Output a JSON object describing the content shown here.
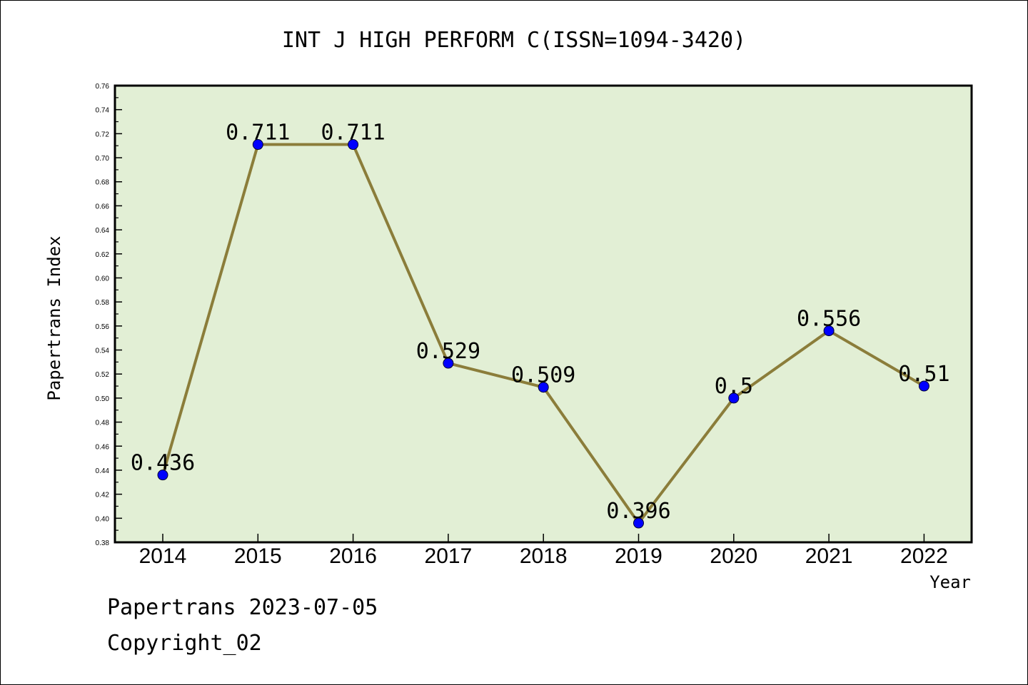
{
  "chart_data": {
    "type": "line",
    "title": "INT J HIGH PERFORM C(ISSN=1094-3420)",
    "xlabel": "Year",
    "ylabel": "Papertrans Index",
    "categories": [
      "2014",
      "2015",
      "2016",
      "2017",
      "2018",
      "2019",
      "2020",
      "2021",
      "2022"
    ],
    "series": [
      {
        "values": [
          0.436,
          0.711,
          0.711,
          0.529,
          0.509,
          0.396,
          0.5,
          0.556,
          0.51
        ],
        "labels": [
          "0.436",
          "0.711",
          "0.711",
          "0.529",
          "0.509",
          "0.396",
          "0.5",
          "0.556",
          "0.51"
        ]
      }
    ],
    "ylim": [
      0.38,
      0.76
    ],
    "yticks": [
      "0.38",
      "0.40",
      "0.42",
      "0.44",
      "0.46",
      "0.48",
      "0.50",
      "0.52",
      "0.54",
      "0.56",
      "0.58",
      "0.60",
      "0.62",
      "0.64",
      "0.66",
      "0.68",
      "0.70",
      "0.72",
      "0.74",
      "0.76"
    ],
    "grid": false,
    "legend": "none",
    "colors": {
      "plot_background": "#e2efd5",
      "line": "#8b7d3a",
      "marker": "#0000ff",
      "axis": "#000000"
    }
  },
  "footer": {
    "line1": "Papertrans 2023-07-05",
    "line2": "Copyright_02"
  }
}
